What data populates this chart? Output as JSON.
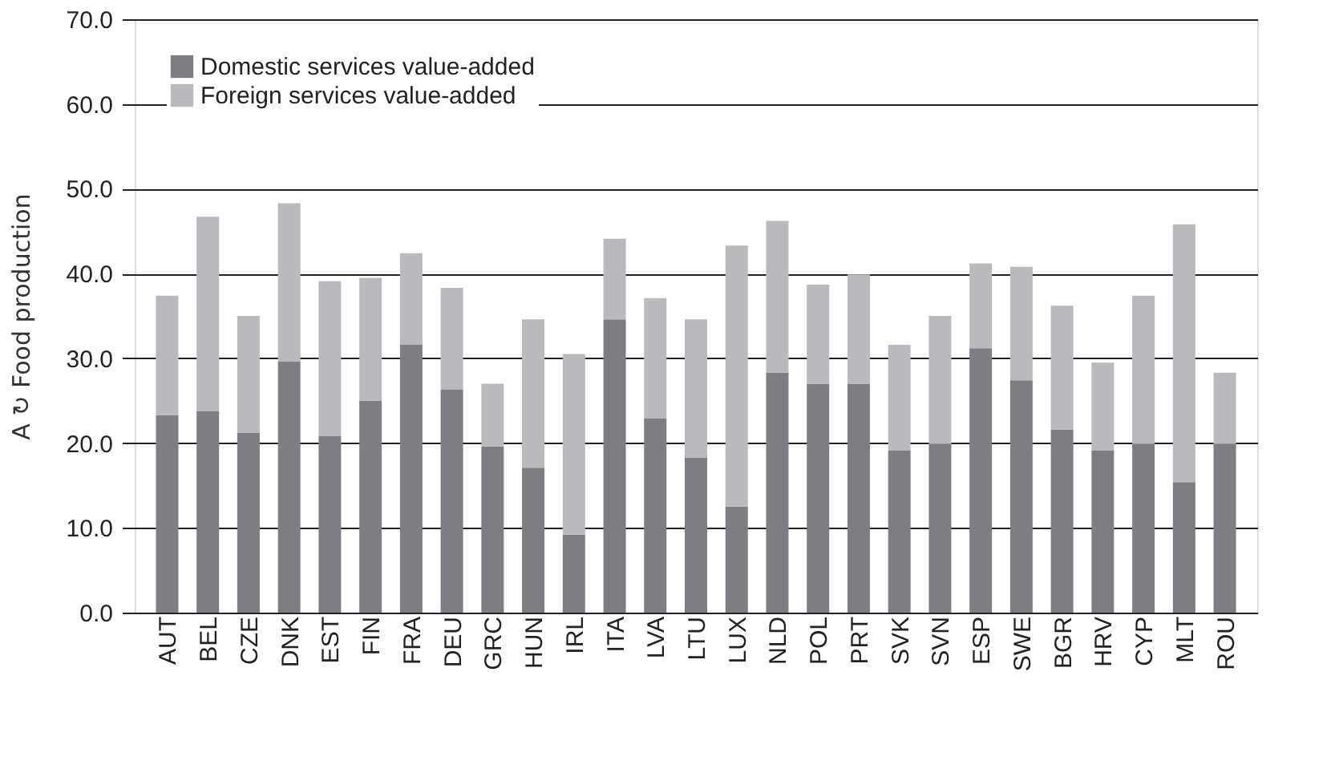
{
  "chart_data": {
    "type": "bar",
    "stacked": true,
    "ylabel": "A ↻ Food production",
    "categories": [
      "AUT",
      "BEL",
      "CZE",
      "DNK",
      "EST",
      "FIN",
      "FRA",
      "DEU",
      "GRC",
      "HUN",
      "IRL",
      "ITA",
      "LVA",
      "LTU",
      "LUX",
      "NLD",
      "POL",
      "PRT",
      "SVK",
      "SVN",
      "ESP",
      "SWE",
      "BGR",
      "HRV",
      "CYP",
      "MLT",
      "ROU"
    ],
    "series": [
      {
        "name": "Domestic services value-added",
        "color": "#7d7e83",
        "values": [
          23.3,
          23.8,
          21.2,
          29.6,
          20.8,
          25.0,
          31.6,
          26.3,
          19.6,
          17.1,
          9.2,
          34.6,
          22.9,
          18.3,
          12.5,
          28.3,
          27.0,
          27.0,
          19.1,
          19.9,
          31.2,
          27.4,
          21.6,
          19.1,
          19.9,
          15.4,
          19.9
        ]
      },
      {
        "name": "Foreign services value-added",
        "color": "#b9babe",
        "values": [
          14.1,
          22.9,
          13.8,
          18.7,
          18.3,
          14.5,
          10.8,
          12.0,
          7.4,
          17.5,
          21.3,
          9.5,
          14.2,
          16.3,
          30.8,
          17.9,
          11.7,
          12.9,
          12.5,
          15.1,
          10.0,
          13.4,
          14.6,
          10.4,
          17.5,
          30.4,
          8.4
        ]
      }
    ],
    "ylim": [
      0,
      70
    ],
    "yticks": [
      {
        "value": 0,
        "label": "0.0"
      },
      {
        "value": 10,
        "label": "10.0"
      },
      {
        "value": 20,
        "label": "20.0"
      },
      {
        "value": 30,
        "label": "30.0"
      },
      {
        "value": 40,
        "label": "40.0"
      },
      {
        "value": 50,
        "label": "50.0"
      },
      {
        "value": 60,
        "label": "60.0"
      },
      {
        "value": 70,
        "label": "70.0"
      }
    ],
    "grid": "y",
    "legend": "top left"
  }
}
